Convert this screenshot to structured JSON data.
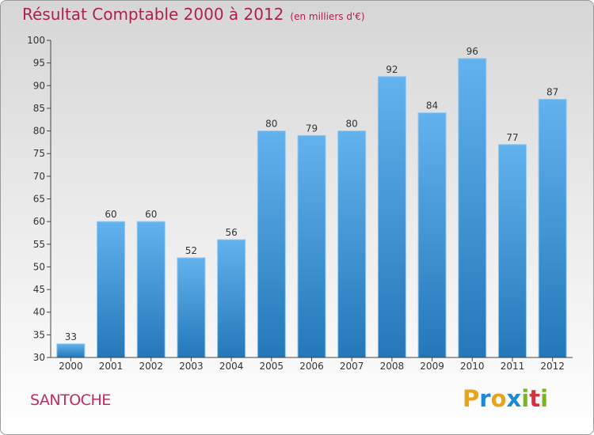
{
  "title": "Résultat Comptable 2000 à 2012",
  "unit": "(en milliers d'€)",
  "commune": "SANTOCHE",
  "logo": {
    "letters": [
      "P",
      "r",
      "o",
      "x",
      "i",
      "t",
      "i"
    ],
    "colors": [
      "#e8a317",
      "#1f88d0",
      "#e8a317",
      "#1f88d0",
      "#7ab51d",
      "#d8303a",
      "#7ab51d"
    ]
  },
  "colors": {
    "bar_top": "#62b2ee",
    "bar_bottom": "#2478b8",
    "title": "#b0204a"
  },
  "chart_data": {
    "type": "bar",
    "title": "Résultat Comptable 2000 à 2012",
    "xlabel": "",
    "ylabel": "en milliers d'€",
    "categories": [
      "2000",
      "2001",
      "2002",
      "2003",
      "2004",
      "2005",
      "2006",
      "2007",
      "2008",
      "2009",
      "2010",
      "2011",
      "2012"
    ],
    "values": [
      33,
      60,
      60,
      52,
      56,
      80,
      79,
      80,
      92,
      84,
      96,
      77,
      87
    ],
    "ylim": [
      30,
      100
    ],
    "yticks": [
      30,
      35,
      40,
      45,
      50,
      55,
      60,
      65,
      70,
      75,
      80,
      85,
      90,
      95,
      100
    ],
    "grid": false
  }
}
